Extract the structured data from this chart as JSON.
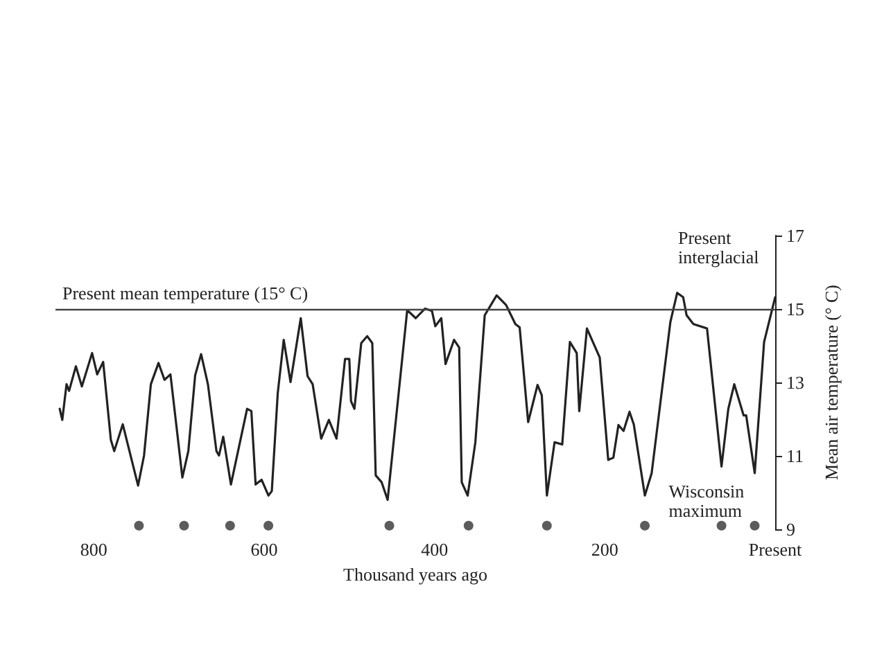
{
  "chart_data": {
    "type": "line",
    "xlabel": "Thousand years ago",
    "ylabel": "Mean air temperature (° C)",
    "xlim": [
      845,
      0
    ],
    "xticks": [
      800,
      600,
      400,
      200,
      {
        "value": 0,
        "label": "Present"
      }
    ],
    "ylim": [
      9,
      17
    ],
    "yticks": [
      9,
      11,
      13,
      15,
      17
    ],
    "series": [
      {
        "color": "#222222",
        "marker": "none",
        "x": [
          840,
          837,
          832,
          829,
          821,
          814,
          802,
          796,
          789,
          780,
          776,
          766,
          748,
          741,
          733,
          724,
          717,
          710,
          696,
          689,
          681,
          674,
          666,
          656,
          653,
          648,
          639,
          620,
          615,
          610,
          603,
          595,
          591,
          584,
          577,
          569,
          557,
          549,
          543,
          533,
          524,
          515,
          505,
          500,
          498,
          494,
          486,
          479,
          473,
          469,
          462,
          455,
          432,
          422,
          411,
          403,
          399,
          392,
          387,
          377,
          371,
          368,
          361,
          352,
          341,
          327,
          316,
          305,
          300,
          290,
          279,
          274,
          268,
          259,
          250,
          241,
          233,
          230,
          221,
          206,
          196,
          190,
          184,
          178,
          171,
          166,
          153,
          145,
          123,
          115,
          108,
          104,
          96,
          80,
          63,
          55,
          48,
          37,
          34,
          24,
          13,
          0
        ],
        "values": [
          12.28,
          11.98,
          12.95,
          12.77,
          13.44,
          12.89,
          13.8,
          13.22,
          13.56,
          11.44,
          11.13,
          11.86,
          10.19,
          11.01,
          12.95,
          13.53,
          13.07,
          13.22,
          10.41,
          11.13,
          13.19,
          13.77,
          12.95,
          11.13,
          11.01,
          11.52,
          10.22,
          12.28,
          12.22,
          10.22,
          10.35,
          9.92,
          10.04,
          12.71,
          14.16,
          13.01,
          14.75,
          13.17,
          12.95,
          11.47,
          11.98,
          11.47,
          13.64,
          13.64,
          12.49,
          12.28,
          14.07,
          14.26,
          14.07,
          10.47,
          10.28,
          9.8,
          14.97,
          14.75,
          15.01,
          14.95,
          14.53,
          14.75,
          13.5,
          14.16,
          13.95,
          10.28,
          9.92,
          11.37,
          14.83,
          15.37,
          15.11,
          14.59,
          14.5,
          11.92,
          12.93,
          12.65,
          9.92,
          11.37,
          11.31,
          14.1,
          13.8,
          12.22,
          14.47,
          13.68,
          10.89,
          10.95,
          11.84,
          11.68,
          12.2,
          11.86,
          9.92,
          10.53,
          14.65,
          15.44,
          15.32,
          14.83,
          14.59,
          14.47,
          10.71,
          12.28,
          12.95,
          12.1,
          12.1,
          10.53,
          14.1,
          15.32
        ]
      },
      {
        "type": "scatter",
        "color": "#333333",
        "marker": "circle",
        "x": [
          747,
          694,
          640,
          595,
          453,
          360,
          268,
          153,
          63,
          24
        ],
        "values": [
          9.1,
          9.1,
          9.1,
          9.1,
          9.1,
          9.1,
          9.1,
          9.1,
          9.1,
          9.1
        ]
      }
    ],
    "ref_lines": [
      {
        "axis": "y",
        "value": 15,
        "label": "Present mean temperature (15° C)",
        "color": "#444444"
      }
    ],
    "annotations": [
      {
        "text": "Present\ninterglacial",
        "x": 0,
        "y": 15.32
      },
      {
        "text": "Wisconsin\nmaximum",
        "x": 24,
        "y": 10.53
      }
    ]
  }
}
